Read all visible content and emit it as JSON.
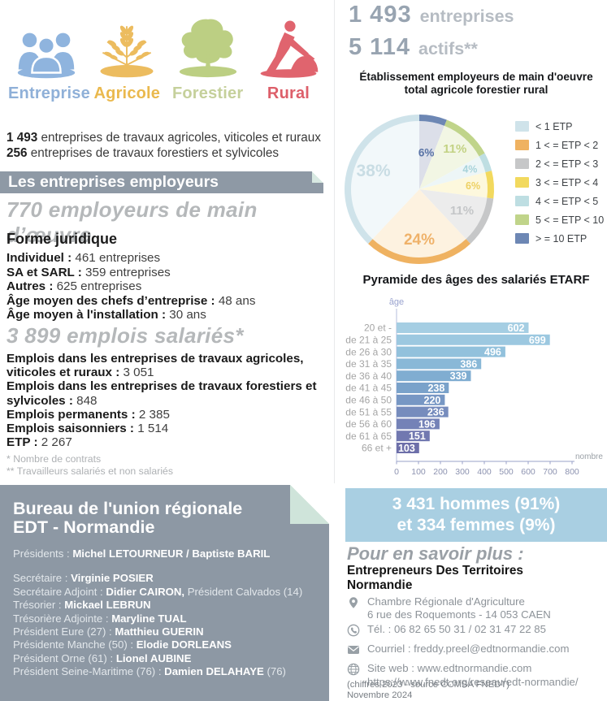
{
  "icons_row": [
    {
      "name": "entreprise",
      "label": "Entreprise",
      "color": "#8fb4de",
      "label_color": "#8fb0d8"
    },
    {
      "name": "agricole",
      "label": "Agricole",
      "color": "#ecbc5f",
      "label_color": "#eab94e"
    },
    {
      "name": "forestier",
      "label": "Forestier",
      "color": "#bccf83",
      "label_color": "#c5d09b"
    },
    {
      "name": "rural",
      "label": "Rural",
      "color": "#e0646e",
      "label_color": "#dd5f6a"
    }
  ],
  "intro": [
    {
      "bold": "1 493",
      "text": " entreprises de travaux agricoles, viticoles et ruraux"
    },
    {
      "bold": "256",
      "text": " entreprises de travaux forestiers et sylvicoles"
    }
  ],
  "banner": {
    "title": "Les entreprises employeurs"
  },
  "employeurs": {
    "heading": "770 employeurs de main d’œuvre",
    "subheading": "Forme juridique",
    "stats": [
      {
        "label": "Individuel",
        "value": "461 entreprises"
      },
      {
        "label": "SA et SARL",
        "value": "359 entreprises"
      },
      {
        "label": "Autres",
        "value": "625 entreprises"
      },
      {
        "label": "Âge moyen des chefs d’entreprise",
        "value": "48 ans"
      },
      {
        "label": "Âge moyen à l'installation",
        "value": "30 ans"
      }
    ]
  },
  "emplois": {
    "heading": "3 899 emplois salariés*",
    "stats": [
      {
        "label": "Emplois dans les entreprises de travaux agricoles, viticoles et ruraux",
        "value": "3 051"
      },
      {
        "label": "Emplois dans les entreprises de travaux forestiers et sylvicoles",
        "value": "848"
      },
      {
        "label": "Emplois permanents",
        "value": "2 385"
      },
      {
        "label": "Emplois saisonniers",
        "value": "1 514"
      },
      {
        "label": "ETP",
        "value": "2 267"
      }
    ],
    "footnotes": [
      "* Nombre de contrats",
      "** Travailleurs salariés et non salariés"
    ]
  },
  "bureau": {
    "title_line1": "Bureau de l'union régionale",
    "title_line2": "EDT - Normandie",
    "members": [
      {
        "role": "Présidents : ",
        "name": "Michel LETOURNEUR / Baptiste BARIL",
        "suffix": "",
        "gap_after": true
      },
      {
        "role": "Secrétaire : ",
        "name": "Virginie POSIER",
        "suffix": ""
      },
      {
        "role": "Secrétaire Adjoint : ",
        "name": "Didier CAIRON,",
        "suffix": " Président Calvados (14)"
      },
      {
        "role": "Trésorier : ",
        "name": "Mickael LEBRUN",
        "suffix": ""
      },
      {
        "role": "Trésorière Adjointe : ",
        "name": "Maryline TUAL",
        "suffix": ""
      },
      {
        "role": "Président Eure (27) : ",
        "name": "Matthieu GUERIN",
        "suffix": ""
      },
      {
        "role": "Présidente Manche (50) : ",
        "name": "Elodie DORLEANS",
        "suffix": ""
      },
      {
        "role": "Président Orne (61) : ",
        "name": "Lionel AUBINE",
        "suffix": ""
      },
      {
        "role": "Président Seine-Maritime (76) : ",
        "name": "Damien DELAHAYE",
        "suffix": " (76)"
      }
    ]
  },
  "summary": {
    "line1_number": "1 493",
    "line1_word": "entreprises",
    "line2_number": "5 114",
    "line2_word": "actifs**"
  },
  "pie_section": {
    "title_line1": "Établissement employeurs de main d'oeuvre",
    "title_line2": "total agricole forestier rural"
  },
  "pyramid_section": {
    "title": "Pyramide des âges des salariés ETARF"
  },
  "gender_box": {
    "line1": "3 431 hommes (91%)",
    "line2": "et 334 femmes (9%)",
    "bg": "#a9cfe2"
  },
  "savoir": {
    "heading": "Pour en savoir plus :",
    "org_line1": "Entrepreneurs Des Territoires",
    "org_line2": "Normandie",
    "contacts": [
      {
        "icon": "location-pin-icon",
        "lines": [
          "Chambre Régionale d'Agriculture",
          "6 rue des Roquemonts - 14 053 CAEN"
        ]
      },
      {
        "icon": "phone-icon",
        "lines": [
          "Tél. : 06 82 65 50 31 / 02 31 47 22 85"
        ]
      },
      {
        "icon": "envelope-icon",
        "lines": [
          "Courriel : freddy.preel@edtnormandie.com"
        ]
      },
      {
        "icon": "globe-icon",
        "lines": [
          "Site web : www.edtnormandie.com",
          "https://www.fnedt.org/reseau/edt-normandie/"
        ]
      }
    ],
    "footer": [
      "(chiffres 2023 - source CCMSA FNEDT)",
      "Novembre 2024"
    ]
  },
  "chart_data": [
    {
      "type": "pie",
      "title": "Établissement employeurs de main d'oeuvre total agricole forestier rural",
      "unit": "percent",
      "start_angle": "top",
      "direction": "clockwise",
      "slices": [
        {
          "label": "> = 10 ETP",
          "value": 6,
          "color": "#6d87b4",
          "pale": "#dcdfe9",
          "label_color": "#5a74a6",
          "label_size": 13.5,
          "label_r": 0.5
        },
        {
          "label": "5 < = ETP < 10",
          "value": 11,
          "color": "#c0d48a",
          "pale": "#f2f6e4",
          "label_color": "#c3d284",
          "label_size": 15,
          "label_r": 0.72
        },
        {
          "label": "4 < = ETP < 5",
          "value": 4,
          "color": "#bedee2",
          "pale": "#edf6f7",
          "label_color": "#a8d3da",
          "label_size": 12.5,
          "label_r": 0.73
        },
        {
          "label": "3 < = ETP < 4",
          "value": 6,
          "color": "#f2d95e",
          "pale": "#fdf8dd",
          "label_color": "#edd063",
          "label_size": 12.5,
          "label_r": 0.72
        },
        {
          "label": "2 < = ETP < 3",
          "value": 11,
          "color": "#c6c7c8",
          "pale": "#ececec",
          "label_color": "#c4c6c8",
          "label_size": 15,
          "label_r": 0.64
        },
        {
          "label": "1 < = ETP < 2",
          "value": 24,
          "color": "#efb261",
          "pale": "#fdf2e0",
          "label_color": "#efb26a",
          "label_size": 19,
          "label_r": 0.68
        },
        {
          "label": "< 1 ETP",
          "value": 38,
          "color": "#cfe3ea",
          "pale": "#f2f8fa",
          "label_color": "#c9dde4",
          "label_size": 21,
          "label_r": 0.66
        }
      ],
      "legend_order": [
        6,
        5,
        4,
        3,
        2,
        1,
        0
      ],
      "legend_position": "right"
    },
    {
      "type": "bar",
      "orientation": "horizontal",
      "title": "Pyramide des âges des salariés ETARF",
      "categories": [
        "20 et -",
        "de 21 à 25",
        "de 26 à 30",
        "de 31 à 35",
        "de 36 à 40",
        "de 41 à 45",
        "de 46 à 50",
        "de 51 à 55",
        "de 56 à 60",
        "de 61 à 65",
        "66 et +"
      ],
      "values": [
        602,
        699,
        496,
        386,
        339,
        238,
        220,
        236,
        196,
        151,
        103
      ],
      "bar_colors": [
        "#a5cee3",
        "#9cc8e0",
        "#92c1dc",
        "#89b8d7",
        "#80add1",
        "#7aa2ca",
        "#7797c4",
        "#768cbd",
        "#7482b7",
        "#7178b0",
        "#6d6fa9"
      ],
      "xlabel": "nombre",
      "ylabel": "âge",
      "xlim": [
        0,
        800
      ],
      "xticks": [
        0,
        100,
        200,
        300,
        400,
        500,
        600,
        700,
        800
      ],
      "value_labels": "inside-end",
      "grid": false
    }
  ]
}
